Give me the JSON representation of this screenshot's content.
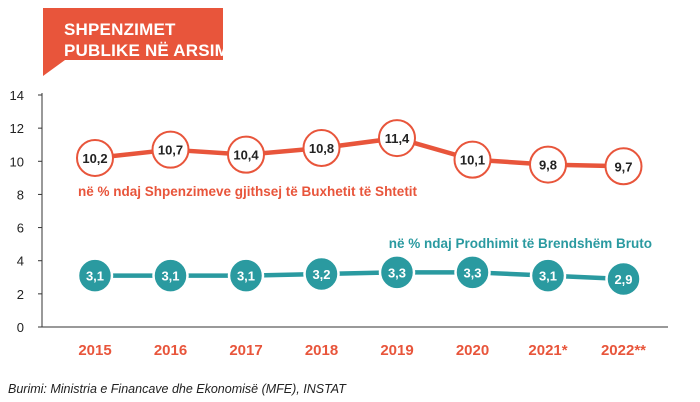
{
  "chart_data": {
    "type": "line",
    "title_lines": [
      "SHPENZIMET",
      "PUBLIKE NË ARSIM"
    ],
    "categories": [
      "2015",
      "2016",
      "2017",
      "2018",
      "2019",
      "2020",
      "2021*",
      "2022**"
    ],
    "ylim": [
      0,
      14
    ],
    "yticks": [
      "0",
      "2",
      "4",
      "6",
      "8",
      "10",
      "12",
      "14"
    ],
    "grid": false,
    "series": [
      {
        "name": "në % ndaj Shpenzimeve gjithsej të Buxhetit të Shtetit",
        "values": [
          10.2,
          10.7,
          10.4,
          10.8,
          11.4,
          10.1,
          9.8,
          9.7
        ],
        "labels": [
          "10,2",
          "10,7",
          "10,4",
          "10,8",
          "11,4",
          "10,1",
          "9,8",
          "9,7"
        ],
        "color": "#e8553b"
      },
      {
        "name": "në % ndaj Prodhimit të Brendshëm Bruto",
        "values": [
          3.1,
          3.1,
          3.1,
          3.2,
          3.3,
          3.3,
          3.1,
          2.9
        ],
        "labels": [
          "3,1",
          "3,1",
          "3,1",
          "3,2",
          "3,3",
          "3,3",
          "3,1",
          "2,9"
        ],
        "color": "#2a9aa0"
      }
    ],
    "source": "Burimi: Ministria e Financave dhe Ekonomisë (MFE), INSTAT"
  }
}
